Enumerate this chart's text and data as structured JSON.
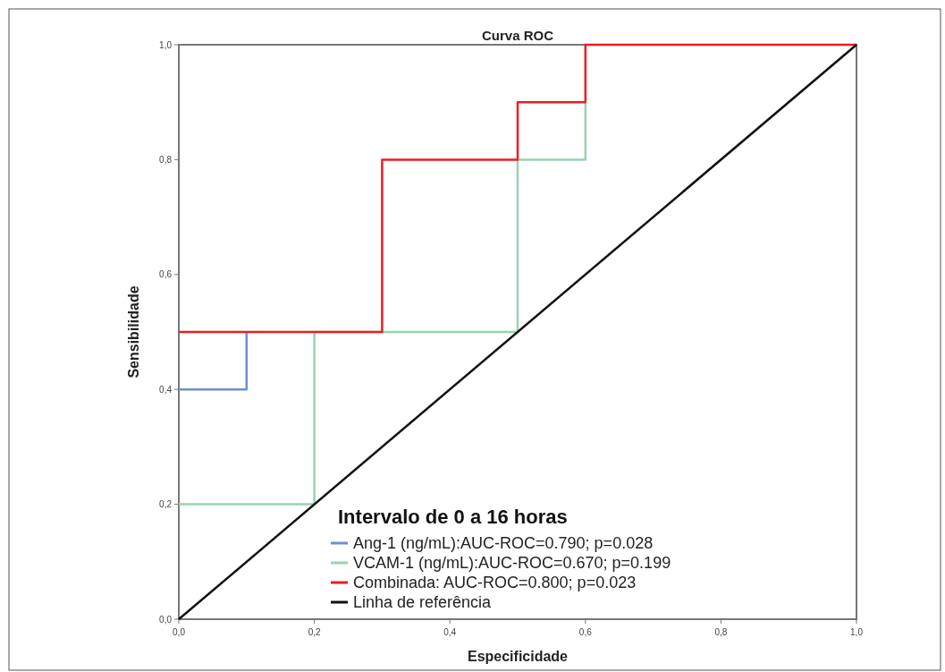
{
  "chart_data": {
    "type": "line",
    "title": "Curva ROC",
    "xlabel": "Especificidade",
    "ylabel": "Sensibilidade",
    "legend_title": "Intervalo de 0 a 16 horas",
    "legend": "bottom",
    "grid": false,
    "marker": "none",
    "line_style": "solid",
    "xlim": [
      0,
      1
    ],
    "ylim": [
      0,
      1
    ],
    "xticks": [
      {
        "value": 0,
        "label": "0,0"
      },
      {
        "value": 0.2,
        "label": "0,2"
      },
      {
        "value": 0.4,
        "label": "0,4"
      },
      {
        "value": 0.6,
        "label": "0,6"
      },
      {
        "value": 0.8,
        "label": "0,8"
      },
      {
        "value": 1,
        "label": "1,0"
      }
    ],
    "yticks": [
      {
        "value": 0,
        "label": "0,0"
      },
      {
        "value": 0.2,
        "label": "0,2"
      },
      {
        "value": 0.4,
        "label": "0,4"
      },
      {
        "value": 0.6,
        "label": "0,6"
      },
      {
        "value": 0.8,
        "label": "0,8"
      },
      {
        "value": 1,
        "label": "1,0"
      }
    ],
    "series": [
      {
        "name": "Ang-1 (ng/mL):AUC-ROC=0.790; p=0.028",
        "color": "#6f8fcf",
        "x": [
          0,
          0.1,
          0.1
        ],
        "values": [
          0.4,
          0.4,
          0.5
        ]
      },
      {
        "name": "VCAM-1 (ng/mL):AUC-ROC=0.670; p=0.199",
        "color": "#96d4ae",
        "x": [
          0,
          0.2,
          0.2,
          0.5,
          0.5,
          0.6,
          0.6
        ],
        "values": [
          0.2,
          0.2,
          0.5,
          0.5,
          0.8,
          0.8,
          0.9
        ]
      },
      {
        "name": "Combinada: AUC-ROC=0.800; p=0.023",
        "color": "#ee1c25",
        "x": [
          0,
          0.3,
          0.3,
          0.5,
          0.5,
          0.6,
          0.6,
          1
        ],
        "values": [
          0.5,
          0.5,
          0.8,
          0.8,
          0.9,
          0.9,
          1,
          1
        ]
      },
      {
        "name": "Linha de referência",
        "color": "#111111",
        "x": [
          0,
          1
        ],
        "values": [
          0,
          1
        ]
      }
    ]
  }
}
